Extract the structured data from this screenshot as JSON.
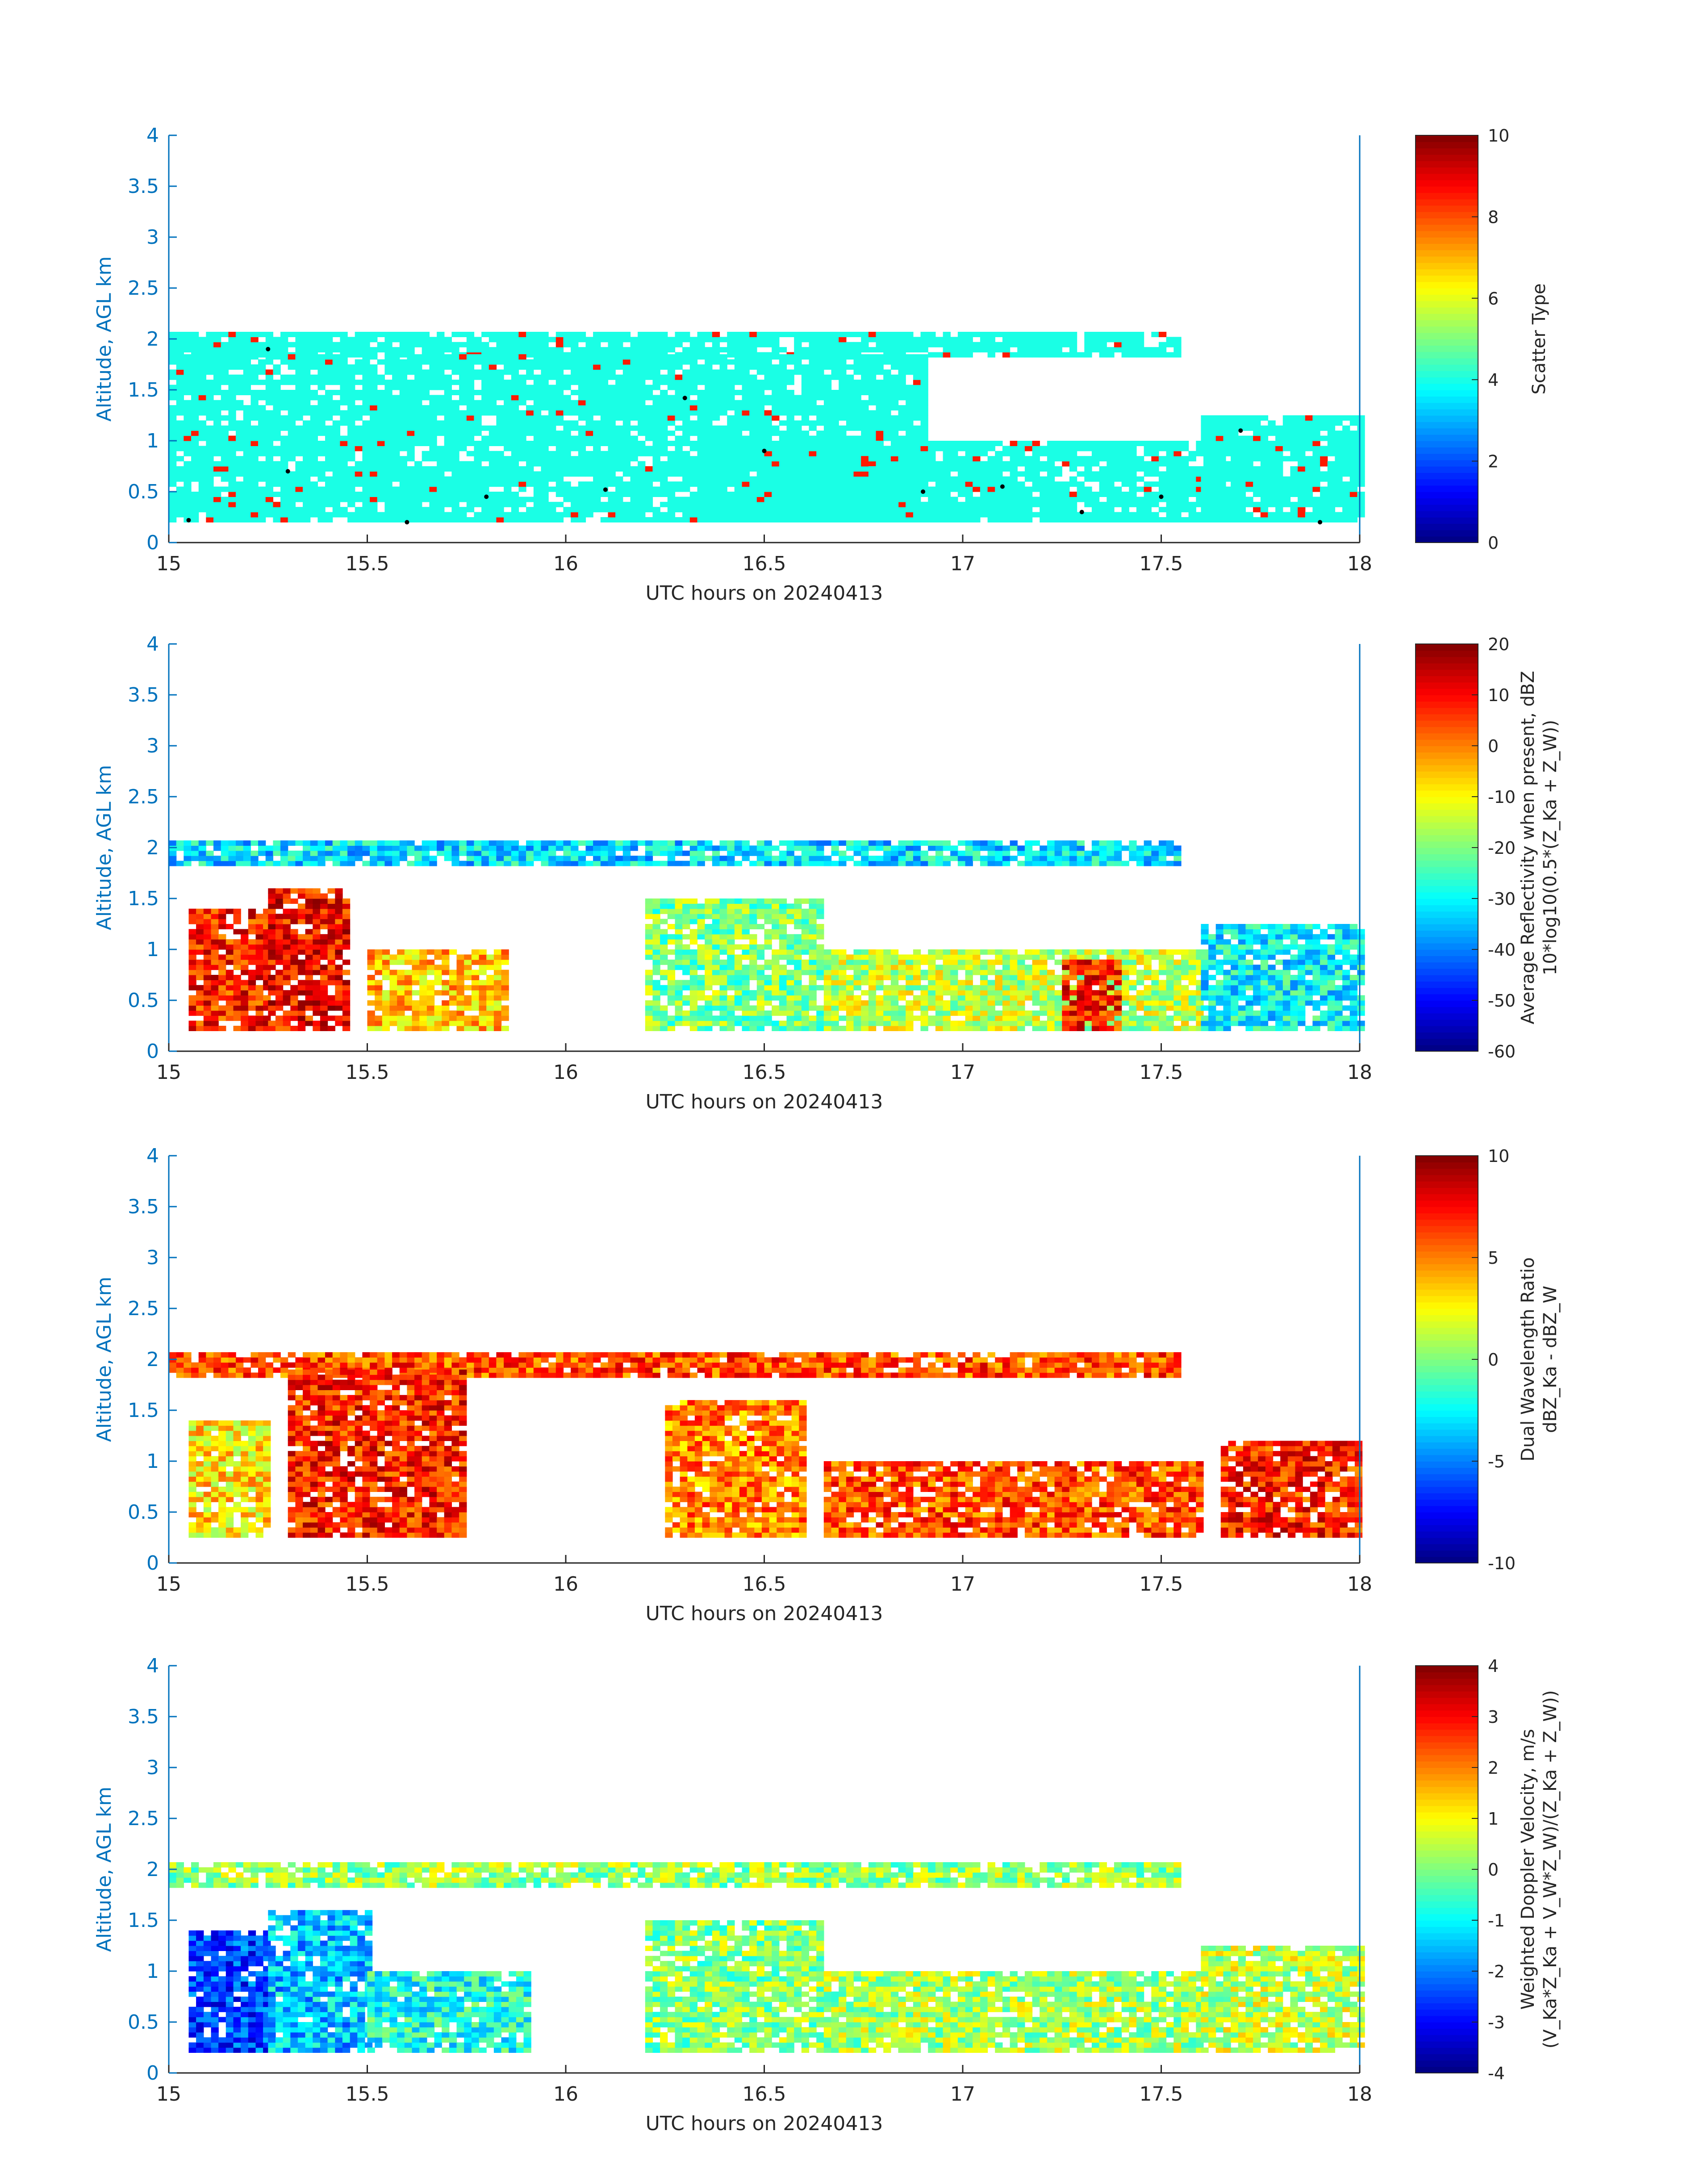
{
  "figure": {
    "x_axis_label": "UTC hours on 20240413",
    "y_axis_label": "Altitude, AGL km",
    "x_ticks": [
      "15",
      "15.5",
      "16",
      "16.5",
      "17",
      "17.5",
      "18"
    ],
    "y_ticks": [
      "0",
      "0.5",
      "1",
      "1.5",
      "2",
      "2.5",
      "3",
      "3.5",
      "4"
    ]
  },
  "chart_data": [
    {
      "type": "heatmap",
      "xlabel": "UTC hours on 20240413",
      "ylabel": "Altitude, AGL km",
      "xlim": [
        15,
        18
      ],
      "ylim": [
        0,
        4
      ],
      "colorbar": {
        "label_lines": [
          "Scatter Type"
        ],
        "range": [
          0,
          10
        ],
        "ticks": [
          "0",
          "2",
          "4",
          "6",
          "8",
          "10"
        ]
      },
      "dominant_value": 4,
      "secondary_value": 8.5,
      "layers": [
        {
          "x0": 15.0,
          "x1": 17.55,
          "y0": 1.82,
          "y1": 2.05,
          "v": 4
        },
        {
          "x0": 15.0,
          "x1": 16.9,
          "y0": 0.2,
          "y1": 1.85,
          "v": 4
        },
        {
          "x0": 16.35,
          "x1": 17.65,
          "y0": 0.2,
          "y1": 1.0,
          "v": 4
        },
        {
          "x0": 17.6,
          "x1": 18.0,
          "y0": 0.2,
          "y1": 1.25,
          "v": 4
        }
      ],
      "cloud_top_dots": [
        [
          15.05,
          0.22
        ],
        [
          15.25,
          1.9
        ],
        [
          15.3,
          0.7
        ],
        [
          15.6,
          0.2
        ],
        [
          15.8,
          0.45
        ],
        [
          16.1,
          0.52
        ],
        [
          16.3,
          1.42
        ],
        [
          16.5,
          0.9
        ],
        [
          16.9,
          0.5
        ],
        [
          17.1,
          0.55
        ],
        [
          17.3,
          0.3
        ],
        [
          17.5,
          0.45
        ],
        [
          17.7,
          1.1
        ],
        [
          17.9,
          0.2
        ]
      ]
    },
    {
      "type": "heatmap",
      "xlabel": "UTC hours on 20240413",
      "ylabel": "Altitude, AGL km",
      "xlim": [
        15,
        18
      ],
      "ylim": [
        0,
        4
      ],
      "colorbar": {
        "label_lines": [
          "Average Reflectivity when present, dBZ",
          "10*log10(0.5*(Z_Ka + Z_W))"
        ],
        "range": [
          -60,
          20
        ],
        "ticks": [
          "-60",
          "-50",
          "-40",
          "-30",
          "-20",
          "-10",
          "0",
          "10",
          "20"
        ]
      },
      "layers": [
        {
          "x0": 15.0,
          "x1": 17.55,
          "y0": 1.82,
          "y1": 2.05,
          "v": -32
        },
        {
          "x0": 15.05,
          "x1": 15.25,
          "y0": 0.2,
          "y1": 1.4,
          "v": 8
        },
        {
          "x0": 15.25,
          "x1": 15.45,
          "y0": 0.2,
          "y1": 1.6,
          "v": 10
        },
        {
          "x0": 15.5,
          "x1": 15.85,
          "y0": 0.2,
          "y1": 1.0,
          "v": -5
        },
        {
          "x0": 16.2,
          "x1": 16.65,
          "y0": 0.2,
          "y1": 1.5,
          "v": -20
        },
        {
          "x0": 16.65,
          "x1": 17.6,
          "y0": 0.2,
          "y1": 1.0,
          "v": -15
        },
        {
          "x0": 17.25,
          "x1": 17.4,
          "y0": 0.2,
          "y1": 0.9,
          "v": 8
        },
        {
          "x0": 17.6,
          "x1": 18.0,
          "y0": 0.2,
          "y1": 1.25,
          "v": -30
        }
      ]
    },
    {
      "type": "heatmap",
      "xlabel": "UTC hours on 20240413",
      "ylabel": "Altitude, AGL km",
      "xlim": [
        15,
        18
      ],
      "ylim": [
        0,
        4
      ],
      "colorbar": {
        "label_lines": [
          "Dual Wavelength Ratio",
          "dBZ_Ka - dBZ_W"
        ],
        "range": [
          -10,
          10
        ],
        "ticks": [
          "-10",
          "-5",
          "0",
          "5",
          "10"
        ]
      },
      "layers": [
        {
          "x0": 15.0,
          "x1": 17.55,
          "y0": 1.82,
          "y1": 2.05,
          "v": 6
        },
        {
          "x0": 15.05,
          "x1": 15.25,
          "y0": 0.25,
          "y1": 1.4,
          "v": 3
        },
        {
          "x0": 15.3,
          "x1": 15.75,
          "y0": 0.25,
          "y1": 1.9,
          "v": 7
        },
        {
          "x0": 16.25,
          "x1": 16.6,
          "y0": 0.25,
          "y1": 1.6,
          "v": 5
        },
        {
          "x0": 16.65,
          "x1": 17.6,
          "y0": 0.25,
          "y1": 1.0,
          "v": 6
        },
        {
          "x0": 17.65,
          "x1": 18.0,
          "y0": 0.25,
          "y1": 1.2,
          "v": 7
        }
      ]
    },
    {
      "type": "heatmap",
      "xlabel": "UTC hours on 20240413",
      "ylabel": "Altitude, AGL km",
      "xlim": [
        15,
        18
      ],
      "ylim": [
        0,
        4
      ],
      "colorbar": {
        "label_lines": [
          "Weighted Doppler Velocity, m/s",
          "(V_Ka*Z_Ka + V_W*Z_W)/(Z_Ka + Z_W))"
        ],
        "range": [
          -4,
          4
        ],
        "ticks": [
          "-4",
          "-3",
          "-2",
          "-1",
          "0",
          "1",
          "2",
          "3",
          "4"
        ]
      },
      "layers": [
        {
          "x0": 15.0,
          "x1": 17.55,
          "y0": 1.82,
          "y1": 2.05,
          "v": 0.2
        },
        {
          "x0": 15.05,
          "x1": 15.25,
          "y0": 0.2,
          "y1": 1.4,
          "v": -2.5
        },
        {
          "x0": 15.25,
          "x1": 15.5,
          "y0": 0.2,
          "y1": 1.6,
          "v": -1.5
        },
        {
          "x0": 15.5,
          "x1": 15.9,
          "y0": 0.2,
          "y1": 1.0,
          "v": -0.8
        },
        {
          "x0": 16.2,
          "x1": 16.65,
          "y0": 0.2,
          "y1": 1.5,
          "v": 0.1
        },
        {
          "x0": 16.65,
          "x1": 17.6,
          "y0": 0.2,
          "y1": 1.0,
          "v": 0.3
        },
        {
          "x0": 17.6,
          "x1": 18.0,
          "y0": 0.2,
          "y1": 1.25,
          "v": 0.5
        }
      ]
    }
  ]
}
